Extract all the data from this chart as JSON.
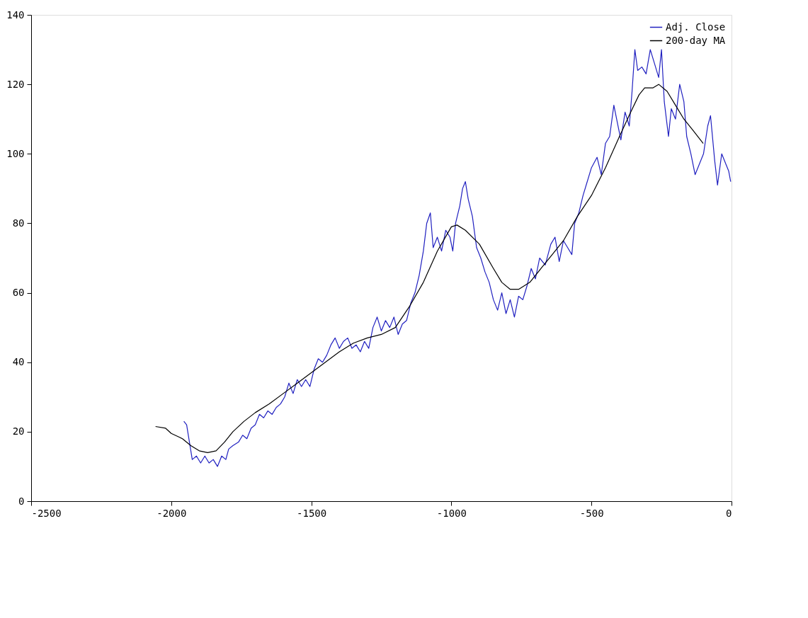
{
  "chart_data": {
    "type": "line",
    "xlim": [
      -2500,
      0
    ],
    "xticks": [
      -2500,
      -2000,
      -1500,
      -1000,
      -500,
      0
    ],
    "ylim": [
      0,
      140
    ],
    "yticks": [
      0,
      20,
      40,
      60,
      80,
      100,
      120,
      140
    ],
    "grid": false,
    "legend": "top right",
    "line_style": "solid",
    "marker": "none",
    "series": [
      {
        "name": "Adj. Close",
        "color": "#2020c0",
        "x": [
          -1955,
          -1945,
          -1935,
          -1925,
          -1910,
          -1895,
          -1880,
          -1865,
          -1850,
          -1835,
          -1820,
          -1805,
          -1795,
          -1780,
          -1760,
          -1745,
          -1730,
          -1715,
          -1700,
          -1685,
          -1670,
          -1655,
          -1640,
          -1625,
          -1610,
          -1595,
          -1580,
          -1565,
          -1550,
          -1535,
          -1520,
          -1505,
          -1490,
          -1475,
          -1460,
          -1445,
          -1430,
          -1415,
          -1400,
          -1385,
          -1370,
          -1355,
          -1340,
          -1325,
          -1310,
          -1295,
          -1280,
          -1265,
          -1250,
          -1235,
          -1220,
          -1205,
          -1190,
          -1175,
          -1160,
          -1145,
          -1130,
          -1115,
          -1100,
          -1088,
          -1075,
          -1065,
          -1050,
          -1035,
          -1020,
          -1005,
          -995,
          -985,
          -970,
          -960,
          -950,
          -940,
          -925,
          -910,
          -895,
          -880,
          -865,
          -850,
          -835,
          -820,
          -805,
          -790,
          -775,
          -760,
          -745,
          -730,
          -715,
          -700,
          -685,
          -665,
          -645,
          -630,
          -615,
          -600,
          -585,
          -570,
          -560,
          -545,
          -530,
          -515,
          -500,
          -480,
          -465,
          -450,
          -435,
          -420,
          -405,
          -395,
          -380,
          -365,
          -355,
          -345,
          -335,
          -320,
          -305,
          -290,
          -275,
          -260,
          -250,
          -240,
          -225,
          -215,
          -200,
          -185,
          -170,
          -160,
          -145,
          -130,
          -115,
          -100,
          -85,
          -75,
          -60,
          -50,
          -35,
          -20,
          -10,
          -3
        ],
        "values": [
          23,
          22,
          17,
          12,
          13,
          11,
          13,
          11,
          12,
          10,
          13,
          12,
          15,
          16,
          17,
          19,
          18,
          21,
          22,
          25,
          24,
          26,
          25,
          27,
          28,
          30,
          34,
          31,
          35,
          33,
          35,
          33,
          38,
          41,
          40,
          42,
          45,
          47,
          44,
          46,
          47,
          44,
          45,
          43,
          46,
          44,
          50,
          53,
          49,
          52,
          50,
          53,
          48,
          51,
          52,
          57,
          60,
          65,
          72,
          80,
          83,
          73,
          76,
          72,
          78,
          76,
          72,
          80,
          85,
          90,
          92,
          87,
          82,
          73,
          70,
          66,
          63,
          58,
          55,
          60,
          54,
          58,
          53,
          59,
          58,
          62,
          67,
          64,
          70,
          68,
          74,
          76,
          69,
          75,
          73,
          71,
          80,
          83,
          88,
          92,
          96,
          99,
          94,
          103,
          105,
          114,
          108,
          104,
          112,
          108,
          118,
          130,
          124,
          125,
          123,
          130,
          126,
          122,
          130,
          115,
          105,
          113,
          110,
          120,
          115,
          105,
          100,
          94,
          97,
          100,
          108,
          111,
          98,
          91,
          100,
          97,
          95,
          92
        ]
      },
      {
        "name": "200-day MA",
        "color": "#000000",
        "x": [
          -2056,
          -2020,
          -2000,
          -1960,
          -1930,
          -1900,
          -1870,
          -1840,
          -1810,
          -1780,
          -1740,
          -1700,
          -1650,
          -1600,
          -1550,
          -1500,
          -1450,
          -1400,
          -1350,
          -1300,
          -1250,
          -1200,
          -1150,
          -1100,
          -1050,
          -1000,
          -980,
          -950,
          -900,
          -850,
          -820,
          -790,
          -760,
          -720,
          -680,
          -640,
          -600,
          -550,
          -500,
          -450,
          -400,
          -360,
          -330,
          -310,
          -280,
          -260,
          -230,
          -200,
          -170,
          -140,
          -101
        ],
        "values": [
          21.5,
          21,
          19.5,
          18,
          16,
          14.5,
          14,
          14.5,
          17,
          20,
          23,
          25.5,
          28,
          31,
          34,
          37,
          40,
          43,
          45.5,
          47,
          48,
          50,
          56,
          63,
          72,
          79,
          79.5,
          78,
          74,
          67,
          63,
          61,
          61,
          63,
          67,
          71,
          75,
          82,
          88,
          96,
          105,
          112,
          117,
          119,
          119,
          120,
          118,
          114,
          110,
          107,
          103
        ]
      }
    ]
  }
}
